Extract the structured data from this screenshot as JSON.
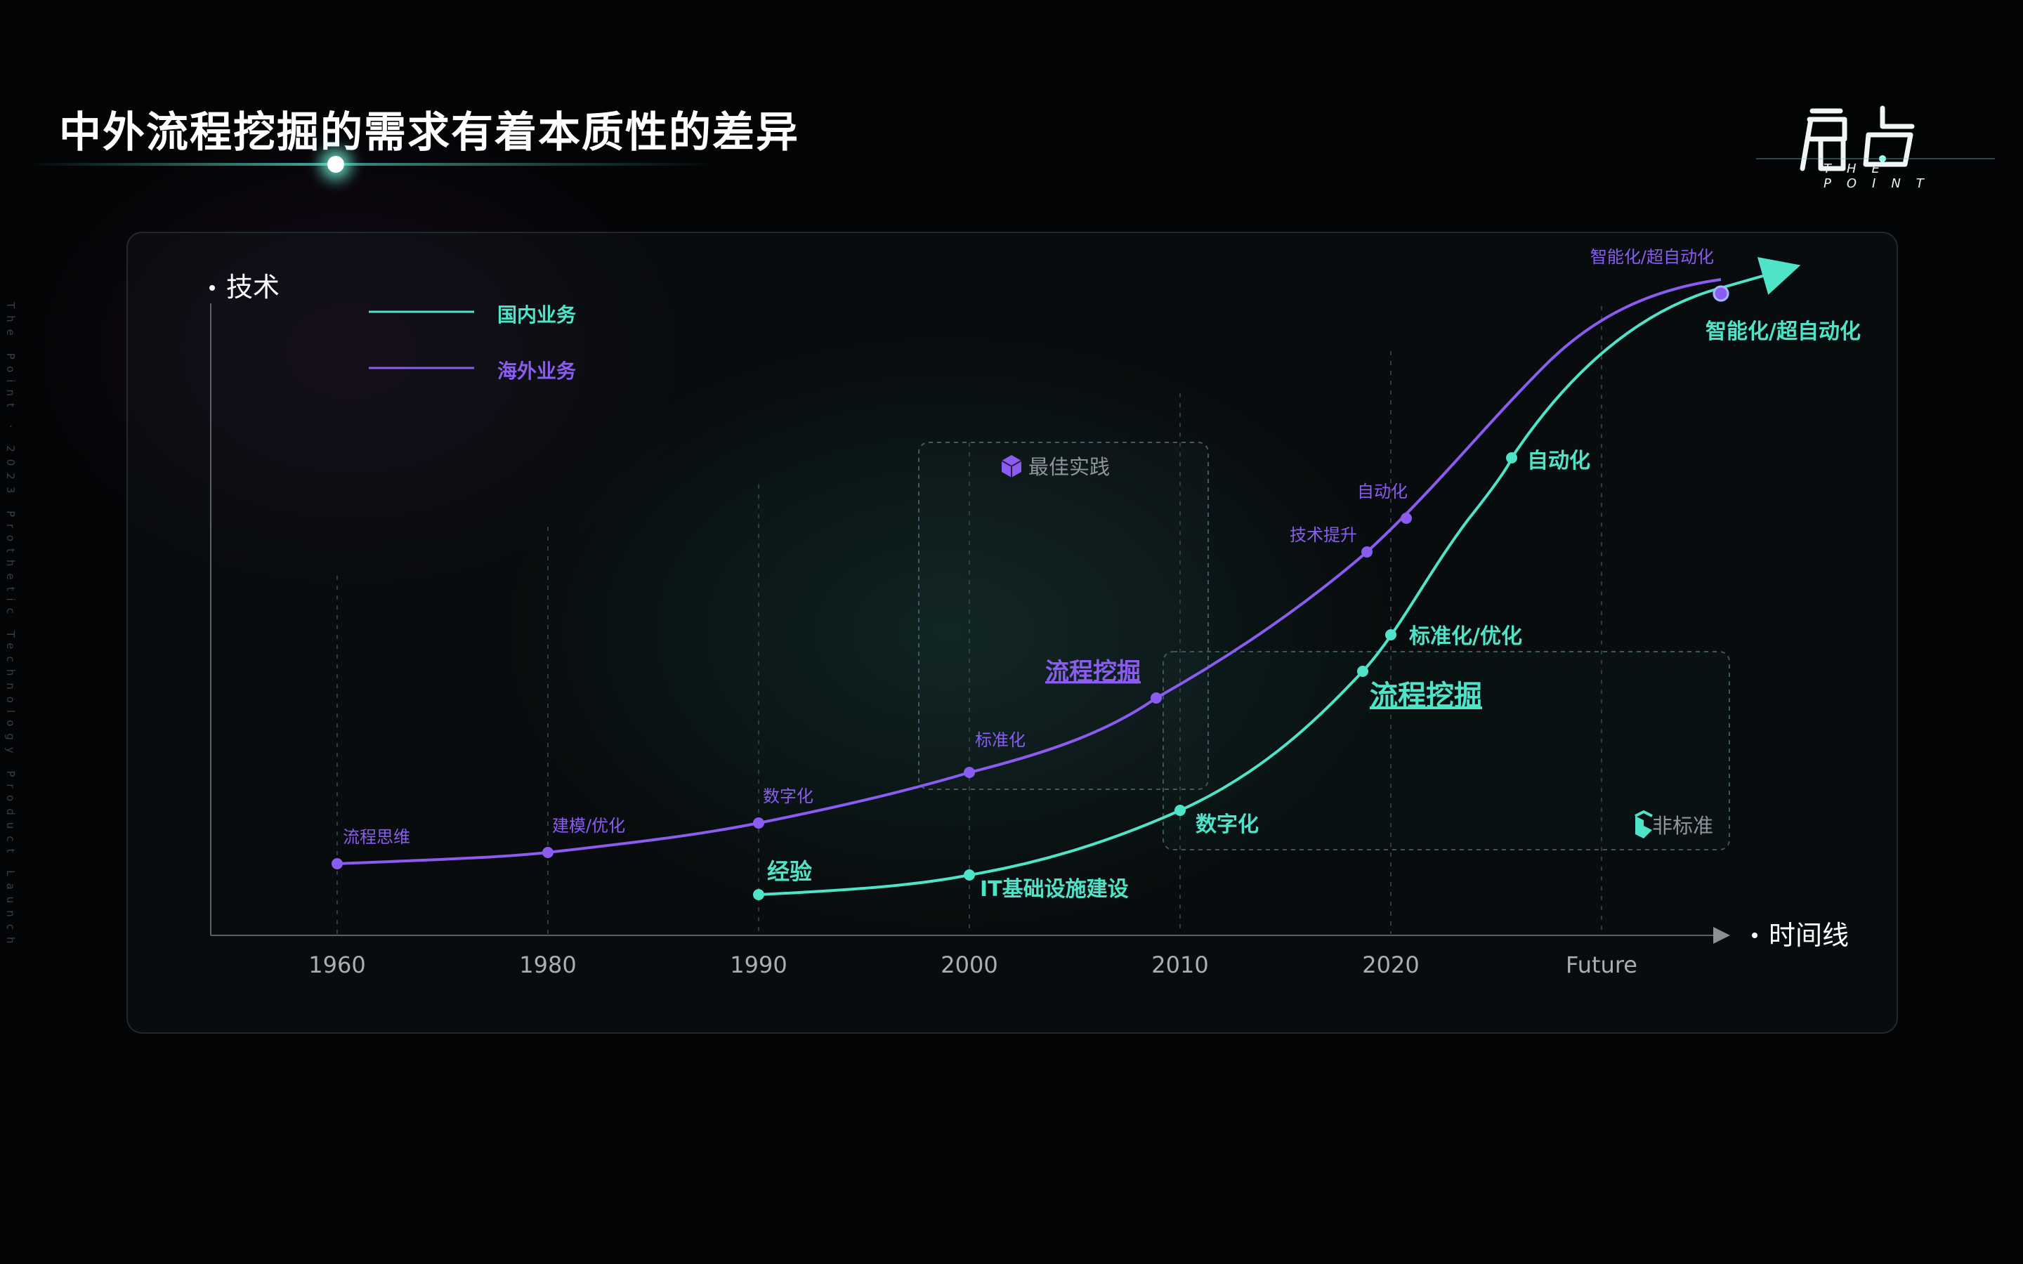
{
  "title": "中外流程挖掘的需求有着本质性的差异",
  "logo": {
    "main": "启点",
    "sub": "THE POINT"
  },
  "side_text": "The Point · 2023 Prothetic Technology Product Launch",
  "colors": {
    "domestic": "#4fe3c8",
    "overseas": "#8a5cf0",
    "axis": "#8a9095"
  },
  "boxes": {
    "best_practice": "最佳实践",
    "non_standard": "非标准"
  },
  "chart_data": {
    "type": "line",
    "ylabel": "技术",
    "xlabel": "时间线",
    "x_ticks": [
      "1960",
      "1980",
      "1990",
      "2000",
      "2010",
      "2020",
      "Future"
    ],
    "series": [
      {
        "name": "国内业务",
        "color": "#4fe3c8",
        "points": [
          {
            "x": "1990",
            "label": "经验"
          },
          {
            "x": "2000",
            "label": "IT基础设施建设"
          },
          {
            "x": "2010",
            "label": "数字化"
          },
          {
            "x": "2019",
            "label": "流程挖掘"
          },
          {
            "x": "2020",
            "label": "标准化/优化"
          },
          {
            "x": "2027",
            "label": "自动化"
          },
          {
            "x": "Future+",
            "label": "智能化/超自动化"
          }
        ]
      },
      {
        "name": "海外业务",
        "color": "#8a5cf0",
        "points": [
          {
            "x": "1960",
            "label": "流程思维"
          },
          {
            "x": "1980",
            "label": "建模/优化"
          },
          {
            "x": "1990",
            "label": "数字化"
          },
          {
            "x": "2000",
            "label": "标准化"
          },
          {
            "x": "2009",
            "label": "流程挖掘"
          },
          {
            "x": "2019",
            "label": "技术提升"
          },
          {
            "x": "2021",
            "label": "自动化"
          },
          {
            "x": "Future+",
            "label": "智能化/超自动化"
          }
        ]
      }
    ]
  }
}
